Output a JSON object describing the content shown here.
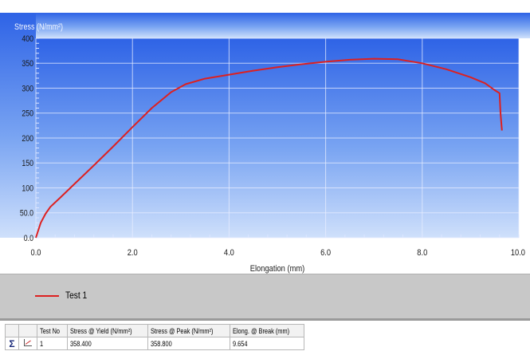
{
  "chart_data": {
    "type": "line",
    "title": "",
    "ylabel": "Stress (N/mm²)",
    "xlabel": "Elongation (mm)",
    "xlim": [
      0,
      10
    ],
    "ylim": [
      0,
      400
    ],
    "x_ticks": [
      "0.0",
      "2.0",
      "4.0",
      "6.0",
      "8.0",
      "10.0"
    ],
    "y_ticks": [
      "0.0",
      "50.0",
      "100",
      "150",
      "200",
      "250",
      "300",
      "350",
      "400"
    ],
    "grid": true,
    "series": [
      {
        "name": "Test 1",
        "color": "#dd2020",
        "x": [
          0,
          0.1,
          0.2,
          0.3,
          0.5,
          0.8,
          1.2,
          1.6,
          2.0,
          2.4,
          2.8,
          3.1,
          3.5,
          4.0,
          4.5,
          5.0,
          5.5,
          6.0,
          6.5,
          7.0,
          7.5,
          8.0,
          8.5,
          9.0,
          9.3,
          9.5,
          9.6,
          9.62,
          9.65
        ],
        "y": [
          0,
          30,
          48,
          62,
          80,
          108,
          145,
          183,
          222,
          260,
          292,
          308,
          319,
          327,
          335,
          342,
          348,
          353,
          357,
          359,
          358,
          350,
          338,
          322,
          310,
          296,
          290,
          250,
          215
        ]
      }
    ]
  },
  "legend": {
    "items": [
      {
        "label": "Test 1",
        "color": "#dd2020"
      }
    ]
  },
  "results": {
    "columns": [
      "Test No",
      "Stress @ Yield (N/mm²)",
      "Stress @ Peak (N/mm²)",
      "Elong. @ Break (mm)"
    ],
    "rows": [
      {
        "icon1": "sigma-icon",
        "icon2": "chart-icon",
        "test_no": "1",
        "yield": "358.400",
        "peak": "358.800",
        "elong": "9.654"
      }
    ]
  }
}
